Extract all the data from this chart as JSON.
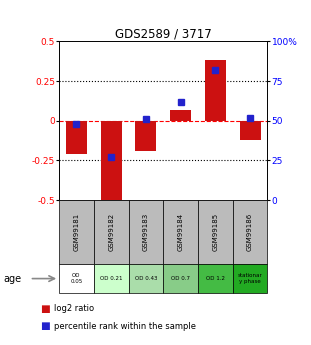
{
  "title": "GDS2589 / 3717",
  "samples": [
    "GSM99181",
    "GSM99182",
    "GSM99183",
    "GSM99184",
    "GSM99185",
    "GSM99186"
  ],
  "log2_ratio": [
    -0.21,
    -0.52,
    -0.19,
    0.07,
    0.38,
    -0.12
  ],
  "percentile_rank": [
    48,
    27,
    51,
    62,
    82,
    52
  ],
  "age_labels": [
    "OD\n0.05",
    "OD 0.21",
    "OD 0.43",
    "OD 0.7",
    "OD 1.2",
    "stationar\ny phase"
  ],
  "age_colors": [
    "#ffffff",
    "#ccffcc",
    "#aaddaa",
    "#88cc88",
    "#44bb44",
    "#22aa22"
  ],
  "sample_bg_color": "#bbbbbb",
  "bar_color": "#cc1111",
  "dot_color": "#2222cc",
  "ylim": [
    -0.5,
    0.5
  ],
  "y2lim": [
    0,
    100
  ],
  "yticks": [
    -0.5,
    -0.25,
    0,
    0.25,
    0.5
  ],
  "y2ticks": [
    0,
    25,
    50,
    75,
    100
  ],
  "dotted_lines": [
    -0.25,
    0.25
  ],
  "bar_width": 0.6
}
